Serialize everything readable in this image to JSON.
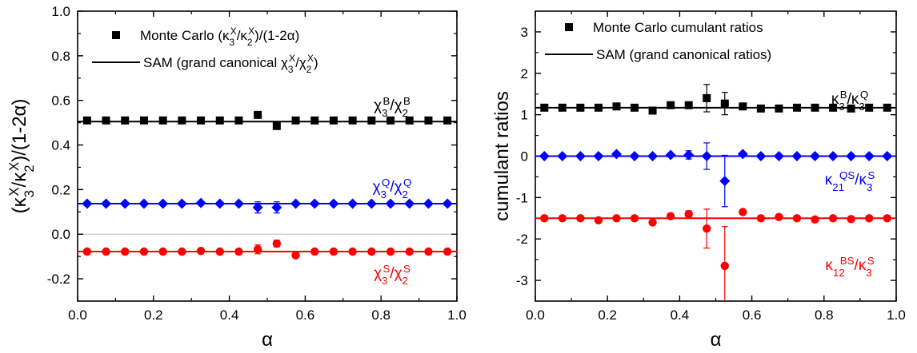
{
  "chart_data": [
    {
      "type": "scatter",
      "xlabel": "α",
      "ylabel_parts": [
        "(κ",
        "3",
        "X",
        "/κ",
        "2",
        "X",
        ")/(1-2α)"
      ],
      "xlim": [
        0.0,
        1.0
      ],
      "ylim": [
        -0.3,
        1.0
      ],
      "xticks": [
        "0.0",
        "0.2",
        "0.4",
        "0.6",
        "0.8",
        "1.0"
      ],
      "yticks": [
        "-0.2",
        "0.0",
        "0.2",
        "0.4",
        "0.6",
        "0.8",
        "1.0"
      ],
      "zero_line": true,
      "legend_position": "top",
      "legend": [
        {
          "marker": "square",
          "parts": [
            "Monte Carlo (κ",
            "3",
            "X",
            "/κ",
            "2",
            "X",
            ")/(1-2α)"
          ]
        },
        {
          "marker": "line",
          "parts": [
            "SAM (grand canonical χ",
            "3",
            "X",
            "/χ",
            "2",
            "X",
            ")"
          ]
        }
      ],
      "series": [
        {
          "id": "baryon",
          "color": "#000000",
          "marker": "square",
          "sam_value": 0.505,
          "label_parts": [
            "χ",
            "3",
            "B",
            "/χ",
            "2",
            "B"
          ],
          "x": [
            0.025,
            0.075,
            0.125,
            0.175,
            0.225,
            0.275,
            0.325,
            0.375,
            0.425,
            0.475,
            0.525,
            0.575,
            0.625,
            0.675,
            0.725,
            0.775,
            0.825,
            0.875,
            0.925,
            0.975
          ],
          "y": [
            0.51,
            0.51,
            0.51,
            0.51,
            0.51,
            0.51,
            0.51,
            0.51,
            0.51,
            0.535,
            0.485,
            0.51,
            0.51,
            0.51,
            0.51,
            0.51,
            0.51,
            0.51,
            0.51,
            0.51
          ],
          "err": [
            0,
            0,
            0,
            0,
            0,
            0,
            0,
            0,
            0,
            0,
            0,
            0,
            0,
            0,
            0,
            0,
            0,
            0,
            0,
            0
          ]
        },
        {
          "id": "charge",
          "color": "#0000ff",
          "marker": "diamond",
          "sam_value": 0.137,
          "label_parts": [
            "χ",
            "3",
            "Q",
            "/χ",
            "2",
            "Q"
          ],
          "x": [
            0.025,
            0.075,
            0.125,
            0.175,
            0.225,
            0.275,
            0.325,
            0.375,
            0.425,
            0.475,
            0.525,
            0.575,
            0.625,
            0.675,
            0.725,
            0.775,
            0.825,
            0.875,
            0.925,
            0.975
          ],
          "y": [
            0.137,
            0.137,
            0.137,
            0.137,
            0.137,
            0.137,
            0.14,
            0.137,
            0.137,
            0.12,
            0.12,
            0.137,
            0.137,
            0.137,
            0.137,
            0.137,
            0.137,
            0.137,
            0.137,
            0.137
          ],
          "err": [
            0,
            0,
            0,
            0,
            0,
            0,
            0,
            0,
            0,
            0.025,
            0.025,
            0,
            0,
            0,
            0,
            0,
            0,
            0,
            0,
            0
          ]
        },
        {
          "id": "strangeness",
          "color": "#ff0000",
          "marker": "circle",
          "sam_value": -0.078,
          "label_parts": [
            "χ",
            "3",
            "S",
            "/χ",
            "2",
            "S"
          ],
          "x": [
            0.025,
            0.075,
            0.125,
            0.175,
            0.225,
            0.275,
            0.325,
            0.375,
            0.425,
            0.475,
            0.525,
            0.575,
            0.625,
            0.675,
            0.725,
            0.775,
            0.825,
            0.875,
            0.925,
            0.975
          ],
          "y": [
            -0.078,
            -0.078,
            -0.078,
            -0.078,
            -0.078,
            -0.078,
            -0.075,
            -0.078,
            -0.078,
            -0.068,
            -0.042,
            -0.095,
            -0.078,
            -0.078,
            -0.078,
            -0.078,
            -0.078,
            -0.078,
            -0.078,
            -0.078
          ],
          "err": [
            0,
            0,
            0,
            0,
            0,
            0,
            0,
            0,
            0,
            0.02,
            0.015,
            0,
            0,
            0,
            0,
            0,
            0,
            0,
            0,
            0
          ]
        }
      ]
    },
    {
      "type": "scatter",
      "xlabel": "α",
      "ylabel_parts": [
        "cumulant ratios"
      ],
      "xlim": [
        0.0,
        1.0
      ],
      "ylim": [
        -3.5,
        3.5
      ],
      "xticks": [
        "0.0",
        "0.2",
        "0.4",
        "0.6",
        "0.8",
        "1.0"
      ],
      "yticks": [
        "-3",
        "-2",
        "-1",
        "0",
        "1",
        "2",
        "3"
      ],
      "zero_line": false,
      "legend_position": "top",
      "legend": [
        {
          "marker": "square",
          "parts": [
            "Monte Carlo cumulant ratios"
          ]
        },
        {
          "marker": "line",
          "parts": [
            "SAM (grand canonical ratios)"
          ]
        }
      ],
      "series": [
        {
          "id": "kappa3B-kappa3Q",
          "color": "#000000",
          "marker": "square",
          "sam_value": 1.17,
          "label_parts": [
            "κ",
            "3",
            "B",
            "/κ",
            "3",
            "Q"
          ],
          "x": [
            0.025,
            0.075,
            0.125,
            0.175,
            0.225,
            0.275,
            0.325,
            0.375,
            0.425,
            0.475,
            0.525,
            0.575,
            0.625,
            0.675,
            0.725,
            0.775,
            0.825,
            0.875,
            0.925,
            0.975
          ],
          "y": [
            1.17,
            1.17,
            1.17,
            1.17,
            1.2,
            1.17,
            1.1,
            1.23,
            1.23,
            1.4,
            1.27,
            1.2,
            1.15,
            1.15,
            1.17,
            1.17,
            1.17,
            1.15,
            1.17,
            1.17
          ],
          "err": [
            0,
            0,
            0,
            0,
            0,
            0,
            0,
            0,
            0,
            0.33,
            0.27,
            0,
            0,
            0,
            0,
            0,
            0,
            0,
            0,
            0
          ]
        },
        {
          "id": "kappa21QS-kappa3S",
          "color": "#0000ff",
          "marker": "diamond",
          "sam_value": 0.0,
          "label_parts": [
            "κ",
            "21",
            "QS",
            "/κ",
            "3",
            "S"
          ],
          "x": [
            0.025,
            0.075,
            0.125,
            0.175,
            0.225,
            0.275,
            0.325,
            0.375,
            0.425,
            0.475,
            0.525,
            0.575,
            0.625,
            0.675,
            0.725,
            0.775,
            0.825,
            0.875,
            0.925,
            0.975
          ],
          "y": [
            0.0,
            0.0,
            0.0,
            0.0,
            0.05,
            0.0,
            0.0,
            0.03,
            0.03,
            0.0,
            -0.6,
            0.05,
            0.0,
            0.0,
            0.0,
            0.0,
            0.0,
            0.0,
            0.0,
            0.0
          ],
          "err": [
            0,
            0,
            0,
            0,
            0,
            0,
            0,
            0,
            0.1,
            0.32,
            0.62,
            0,
            0,
            0,
            0,
            0,
            0,
            0,
            0,
            0
          ]
        },
        {
          "id": "kappa12BS-kappa3S",
          "color": "#ff0000",
          "marker": "circle",
          "sam_value": -1.5,
          "label_parts": [
            "κ",
            "12",
            "BS",
            "/κ",
            "3",
            "S"
          ],
          "x": [
            0.025,
            0.075,
            0.125,
            0.175,
            0.225,
            0.275,
            0.325,
            0.375,
            0.425,
            0.475,
            0.525,
            0.575,
            0.625,
            0.675,
            0.725,
            0.775,
            0.825,
            0.875,
            0.925,
            0.975
          ],
          "y": [
            -1.5,
            -1.5,
            -1.5,
            -1.55,
            -1.5,
            -1.5,
            -1.6,
            -1.45,
            -1.4,
            -1.75,
            -2.65,
            -1.35,
            -1.5,
            -1.47,
            -1.5,
            -1.53,
            -1.5,
            -1.52,
            -1.5,
            -1.5
          ],
          "err": [
            0,
            0,
            0,
            0,
            0,
            0,
            0,
            0,
            0.08,
            0.47,
            0.95,
            0.05,
            0,
            0,
            0,
            0,
            0,
            0,
            0,
            0
          ]
        }
      ]
    }
  ]
}
